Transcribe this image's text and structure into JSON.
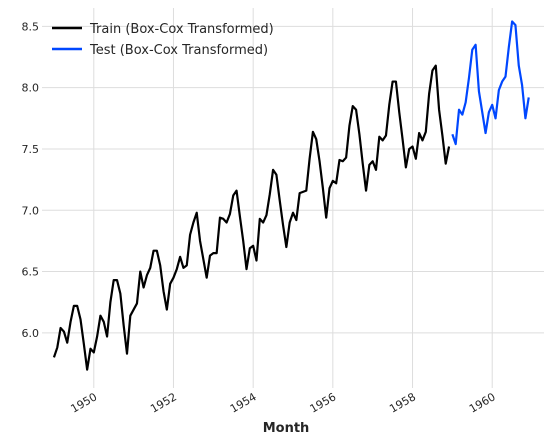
{
  "chart_data": {
    "type": "line",
    "title": "",
    "xlabel": "Month",
    "ylabel": "",
    "grid": true,
    "legend_position": "top-left",
    "xlim": [
      1948.7,
      1961.3
    ],
    "ylim": [
      5.55,
      8.65
    ],
    "x_ticks": [
      1950,
      1952,
      1954,
      1956,
      1958,
      1960
    ],
    "x_tick_labels": [
      "1950",
      "1952",
      "1954",
      "1956",
      "1958",
      "1960"
    ],
    "y_ticks": [
      6.0,
      6.5,
      7.0,
      7.5,
      8.0,
      8.5
    ],
    "y_tick_labels": [
      "6.0",
      "6.5",
      "7.0",
      "7.5",
      "8.0",
      "8.5"
    ],
    "series": [
      {
        "name": "Train (Box-Cox Transformed)",
        "color": "#000000",
        "start": [
          1949,
          1
        ],
        "step": "month",
        "values": [
          5.8,
          5.88,
          6.04,
          6.01,
          5.92,
          6.09,
          6.22,
          6.22,
          6.11,
          5.91,
          5.7,
          5.87,
          5.84,
          5.97,
          6.14,
          6.09,
          5.97,
          6.25,
          6.43,
          6.43,
          6.32,
          6.06,
          5.83,
          6.14,
          6.19,
          6.24,
          6.5,
          6.37,
          6.47,
          6.53,
          6.67,
          6.67,
          6.55,
          6.34,
          6.19,
          6.4,
          6.45,
          6.52,
          6.62,
          6.53,
          6.55,
          6.8,
          6.9,
          6.98,
          6.75,
          6.6,
          6.45,
          6.63,
          6.65,
          6.65,
          6.94,
          6.93,
          6.9,
          6.97,
          7.12,
          7.16,
          6.95,
          6.75,
          6.52,
          6.69,
          6.71,
          6.59,
          6.93,
          6.9,
          6.96,
          7.13,
          7.33,
          7.29,
          7.08,
          6.88,
          6.7,
          6.9,
          6.98,
          6.92,
          7.14,
          7.15,
          7.16,
          7.42,
          7.64,
          7.58,
          7.4,
          7.18,
          6.94,
          7.18,
          7.24,
          7.22,
          7.41,
          7.4,
          7.43,
          7.69,
          7.85,
          7.82,
          7.62,
          7.38,
          7.16,
          7.37,
          7.4,
          7.33,
          7.6,
          7.57,
          7.61,
          7.86,
          8.05,
          8.05,
          7.8,
          7.58,
          7.35,
          7.5,
          7.52,
          7.42,
          7.63,
          7.57,
          7.64,
          7.95,
          8.14,
          8.18,
          7.82,
          7.61,
          7.38,
          7.52
        ]
      },
      {
        "name": "Test (Box-Cox Transformed)",
        "color": "#0047ff",
        "start": [
          1959,
          1
        ],
        "step": "month",
        "values": [
          7.62,
          7.54,
          7.82,
          7.78,
          7.88,
          8.08,
          8.31,
          8.35,
          7.97,
          7.8,
          7.63,
          7.8,
          7.86,
          7.75,
          7.98,
          8.05,
          8.09,
          8.33,
          8.54,
          8.51,
          8.18,
          8.02,
          7.75,
          7.92
        ]
      }
    ]
  }
}
